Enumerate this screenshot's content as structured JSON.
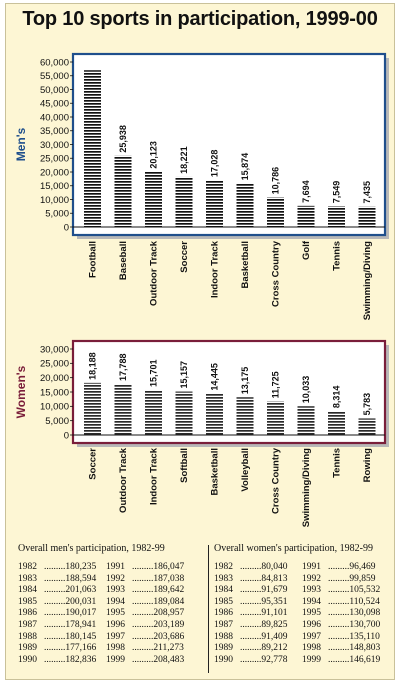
{
  "title": "Top 10 sports in participation, 1999-00",
  "chart_data": [
    {
      "type": "bar",
      "label": "Men's",
      "accent": "#1f4f8c",
      "categories": [
        "Football",
        "Baseball",
        "Outdoor Track",
        "Soccer",
        "Indoor Track",
        "Basketball",
        "Cross Country",
        "Golf",
        "Tennis",
        "Swimming/Diving"
      ],
      "values": [
        57000,
        25938,
        20123,
        18221,
        17028,
        15874,
        10786,
        7694,
        7549,
        7435
      ],
      "value_labels": [
        "",
        "25,938",
        "20,123",
        "18,221",
        "17,028",
        "15,874",
        "10,786",
        "7,694",
        "7,549",
        "7,435"
      ],
      "yticks": [
        "0",
        "5,000",
        "10,000",
        "15,000",
        "20,000",
        "25,000",
        "30,000",
        "35,000",
        "40,000",
        "45,000",
        "50,000",
        "55,000",
        "60,000"
      ],
      "ylim": [
        0,
        60000
      ]
    },
    {
      "type": "bar",
      "label": "Women's",
      "accent": "#7a1e3a",
      "categories": [
        "Soccer",
        "Outdoor Track",
        "Indoor Track",
        "Softball",
        "Basketball",
        "Volleyball",
        "Cross Country",
        "Swimming/Diving",
        "Tennis",
        "Rowing"
      ],
      "values": [
        18188,
        17788,
        15701,
        15157,
        14445,
        13175,
        11725,
        10033,
        8314,
        5783
      ],
      "value_labels": [
        "18,188",
        "17,788",
        "15,701",
        "15,157",
        "14,445",
        "13,175",
        "11,725",
        "10,033",
        "8,314",
        "5,783"
      ],
      "yticks": [
        "0",
        "5,000",
        "10,000",
        "15,000",
        "20,000",
        "25,000",
        "30,000"
      ],
      "ylim": [
        0,
        30000
      ]
    }
  ],
  "tables": {
    "men": {
      "heading": "Overall men's participation, 1982-99",
      "rows": [
        [
          "1982",
          "180,235"
        ],
        [
          "1983",
          "188,594"
        ],
        [
          "1984",
          "201,063"
        ],
        [
          "1985",
          "200,031"
        ],
        [
          "1986",
          "190,017"
        ],
        [
          "1987",
          "178,941"
        ],
        [
          "1988",
          "180,145"
        ],
        [
          "1989",
          "177,166"
        ],
        [
          "1990",
          "182,836"
        ],
        [
          "1991",
          "186,047"
        ],
        [
          "1992",
          "187,038"
        ],
        [
          "1993",
          "189,642"
        ],
        [
          "1994",
          "189,084"
        ],
        [
          "1995",
          "208,957"
        ],
        [
          "1996",
          "203,189"
        ],
        [
          "1997",
          "203,686"
        ],
        [
          "1998",
          "211,273"
        ],
        [
          "1999",
          "208,483"
        ]
      ]
    },
    "women": {
      "heading": "Overall women's participation, 1982-99",
      "rows": [
        [
          "1982",
          "80,040"
        ],
        [
          "1983",
          "84,813"
        ],
        [
          "1984",
          "91,679"
        ],
        [
          "1985",
          "95,351"
        ],
        [
          "1986",
          "91,101"
        ],
        [
          "1987",
          "89,825"
        ],
        [
          "1988",
          "91,409"
        ],
        [
          "1989",
          "89,212"
        ],
        [
          "1990",
          "92,778"
        ],
        [
          "1991",
          "96,469"
        ],
        [
          "1992",
          "99,859"
        ],
        [
          "1993",
          "105,532"
        ],
        [
          "1994",
          "110,524"
        ],
        [
          "1995",
          "130,098"
        ],
        [
          "1996",
          "130,700"
        ],
        [
          "1997",
          "135,110"
        ],
        [
          "1998",
          "148,803"
        ],
        [
          "1999",
          "146,619"
        ]
      ]
    }
  }
}
